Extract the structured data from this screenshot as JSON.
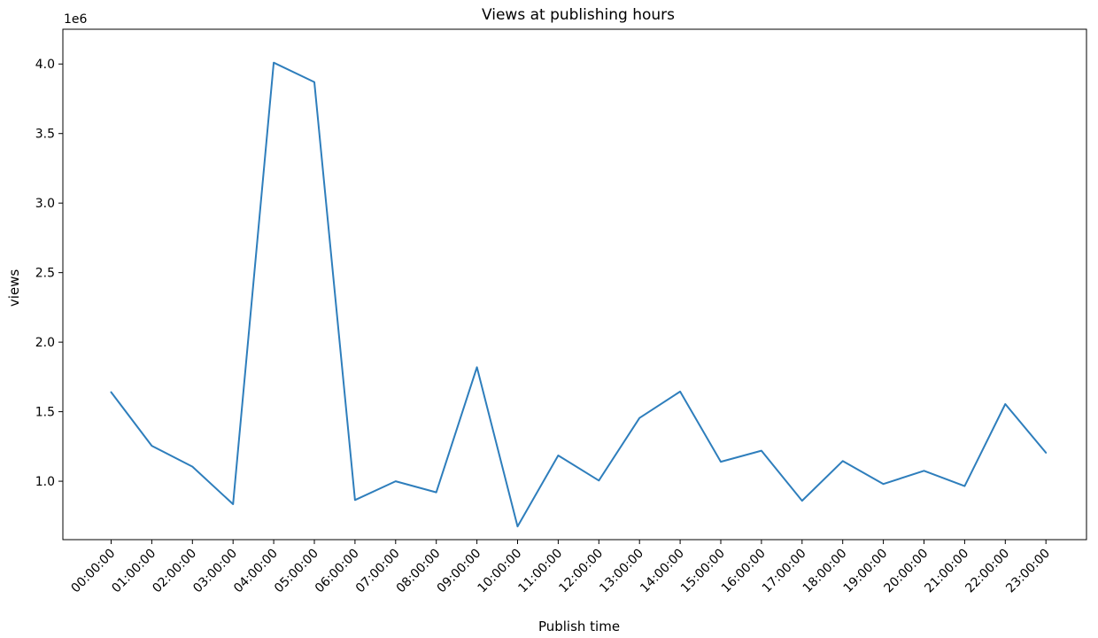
{
  "chart_data": {
    "type": "line",
    "title": "Views at publishing hours",
    "xlabel": "Publish time",
    "ylabel": "views",
    "y_offset_label": "1e6",
    "y_scale": 1000000,
    "ylim": [
      0.58,
      4.25
    ],
    "yticks": [
      1.0,
      1.5,
      2.0,
      2.5,
      3.0,
      3.5,
      4.0
    ],
    "ytick_labels": [
      "1.0",
      "1.5",
      "2.0",
      "2.5",
      "3.0",
      "3.5",
      "4.0"
    ],
    "grid": false,
    "legend": "none",
    "line_color": "#2e7ebc",
    "categories": [
      "00:00:00",
      "01:00:00",
      "02:00:00",
      "03:00:00",
      "04:00:00",
      "05:00:00",
      "06:00:00",
      "07:00:00",
      "08:00:00",
      "09:00:00",
      "10:00:00",
      "11:00:00",
      "12:00:00",
      "13:00:00",
      "14:00:00",
      "15:00:00",
      "16:00:00",
      "17:00:00",
      "18:00:00",
      "19:00:00",
      "20:00:00",
      "21:00:00",
      "22:00:00",
      "23:00:00"
    ],
    "values": [
      1640000,
      1255000,
      1105000,
      835000,
      4010000,
      3870000,
      865000,
      1000000,
      920000,
      1820000,
      675000,
      1185000,
      1005000,
      1455000,
      1645000,
      1140000,
      1220000,
      860000,
      1145000,
      980000,
      1075000,
      965000,
      1555000,
      1205000
    ]
  }
}
